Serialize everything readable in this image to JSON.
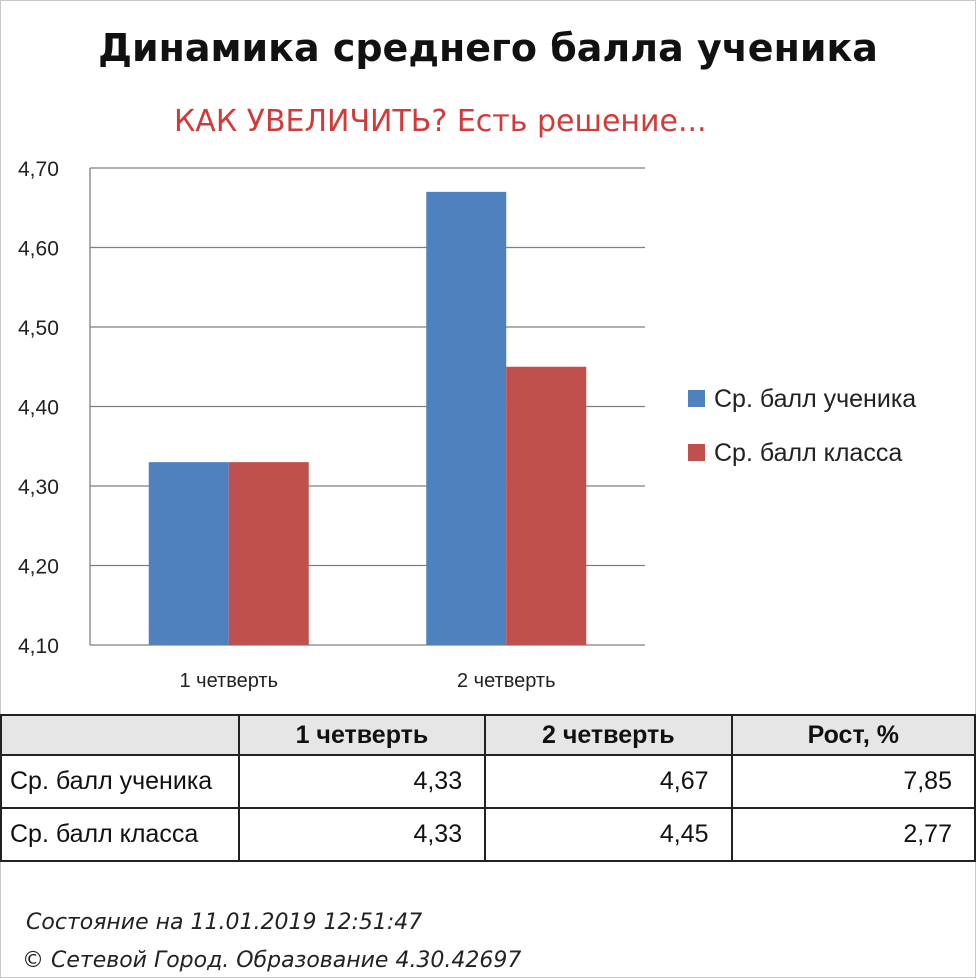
{
  "chart_data": {
    "type": "bar",
    "title": "Динамика среднего балла ученика",
    "subtitle": "КАК УВЕЛИЧИТЬ? Есть решение...",
    "categories": [
      "1 четверть",
      "2 четверть"
    ],
    "series": [
      {
        "name": "Ср. балл ученика",
        "values": [
          4.33,
          4.67
        ],
        "color": "#4f81bd"
      },
      {
        "name": "Ср. балл класса",
        "values": [
          4.33,
          4.45
        ],
        "color": "#c0504d"
      }
    ],
    "ylim": [
      4.1,
      4.7
    ],
    "yticks": [
      "4,10",
      "4,20",
      "4,30",
      "4,40",
      "4,50",
      "4,60",
      "4,70"
    ],
    "grid": true,
    "legend": "right"
  },
  "table": {
    "headers": [
      "",
      "1 четверть",
      "2 четверть",
      "Рост, %"
    ],
    "rows": [
      {
        "label": "Ср. балл ученика",
        "values": [
          "4,33",
          "4,67",
          "7,85"
        ]
      },
      {
        "label": "Ср. балл класса",
        "values": [
          "4,33",
          "4,45",
          "2,77"
        ]
      }
    ]
  },
  "footer": {
    "status": "Состояние на 11.01.2019 12:51:47",
    "copyright": "© Сетевой Город. Образование 4.30.42697"
  }
}
